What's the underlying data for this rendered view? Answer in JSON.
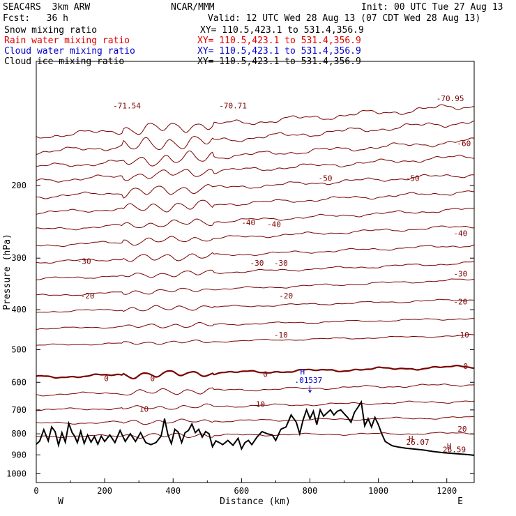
{
  "header": {
    "model": "SEAC4RS  3km ARW",
    "org": "NCAR/MMM",
    "init": "Init: 00 UTC Tue 27 Aug 13",
    "fcst": "Fcst:   36 h",
    "valid": "Valid: 12 UTC Wed 28 Aug 13 (07 CDT Wed 28 Aug 13)"
  },
  "fields": [
    {
      "name": "Snow mixing ratio",
      "xy": "XY= 110.5,423.1 to 531.4,356.9",
      "color": "#000000"
    },
    {
      "name": "Rain water mixing ratio",
      "xy": "XY= 110.5,423.1 to 531.4,356.9",
      "color": "#e00000"
    },
    {
      "name": "Cloud water mixing ratio",
      "xy": "XY= 110.5,423.1 to 531.4,356.9",
      "color": "#0000cc"
    },
    {
      "name": "Cloud ice mixing ratio",
      "xy": "XY= 110.5,423.1 to 531.4,356.9",
      "color": "#000000"
    }
  ],
  "chart_data": {
    "type": "line",
    "xlabel": "Distance (km)",
    "ylabel": "Pressure (hPa)",
    "xlim": [
      0,
      1280
    ],
    "ylim": [
      1050,
      100
    ],
    "yscale": "log",
    "x_ticks": [
      0,
      200,
      400,
      600,
      800,
      1000,
      1200
    ],
    "y_ticks": [
      200,
      300,
      400,
      500,
      600,
      700,
      800,
      900,
      1000
    ],
    "x_end_labels": {
      "left": "W",
      "right": "E"
    },
    "contour_color": "#7a0000",
    "isotherm_levels": [
      -70,
      -60,
      -50,
      -40,
      -30,
      -20,
      -10,
      0,
      10,
      20
    ],
    "isotherms": [
      {
        "level": -70,
        "p_west": 152,
        "p_east": 128
      },
      {
        "level": -65,
        "p_west": 166,
        "p_east": 140
      },
      {
        "level": -60,
        "p_west": 180,
        "p_east": 156
      },
      {
        "level": -55,
        "p_west": 195,
        "p_east": 170
      },
      {
        "level": -50,
        "p_west": 213,
        "p_east": 188
      },
      {
        "level": -45,
        "p_west": 233,
        "p_east": 207
      },
      {
        "level": -40,
        "p_west": 256,
        "p_east": 228
      },
      {
        "level": -35,
        "p_west": 280,
        "p_east": 251
      },
      {
        "level": -30,
        "p_west": 307,
        "p_east": 279
      },
      {
        "level": -25,
        "p_west": 337,
        "p_east": 308
      },
      {
        "level": -20,
        "p_west": 370,
        "p_east": 338
      },
      {
        "level": -15,
        "p_west": 405,
        "p_east": 378
      },
      {
        "level": -10,
        "p_west": 445,
        "p_east": 420
      },
      {
        "level": -5,
        "p_west": 488,
        "p_east": 462
      },
      {
        "level": 0,
        "p_west": 583,
        "p_east": 550
      },
      {
        "level": 5,
        "p_west": 643,
        "p_east": 607
      },
      {
        "level": 10,
        "p_west": 700,
        "p_east": 667
      },
      {
        "level": 15,
        "p_west": 755,
        "p_east": 730
      },
      {
        "level": 20,
        "p_west": 812,
        "p_east": 797
      }
    ],
    "labels": [
      {
        "text": "-71.54",
        "x": 265,
        "p": 128
      },
      {
        "text": "-70.71",
        "x": 575,
        "p": 128
      },
      {
        "text": "-70.95",
        "x": 1210,
        "p": 123
      },
      {
        "text": "-60",
        "x": 1250,
        "p": 158
      },
      {
        "text": "-50",
        "x": 845,
        "p": 192
      },
      {
        "text": "-50",
        "x": 1100,
        "p": 192
      },
      {
        "text": "-40",
        "x": 620,
        "p": 246
      },
      {
        "text": "-40",
        "x": 695,
        "p": 248
      },
      {
        "text": "-40",
        "x": 1240,
        "p": 261
      },
      {
        "text": "-30",
        "x": 140,
        "p": 305
      },
      {
        "text": "-30",
        "x": 645,
        "p": 308
      },
      {
        "text": "-30",
        "x": 715,
        "p": 308
      },
      {
        "text": "-30",
        "x": 1240,
        "p": 327
      },
      {
        "text": "-20",
        "x": 150,
        "p": 370
      },
      {
        "text": "-20",
        "x": 730,
        "p": 370
      },
      {
        "text": "-20",
        "x": 1240,
        "p": 382
      },
      {
        "text": "-10",
        "x": 715,
        "p": 460
      },
      {
        "text": "-10",
        "x": 1245,
        "p": 460
      },
      {
        "text": "0",
        "x": 205,
        "p": 587
      },
      {
        "text": "0",
        "x": 340,
        "p": 587
      },
      {
        "text": "0",
        "x": 670,
        "p": 573
      },
      {
        "text": "0",
        "x": 1255,
        "p": 548
      },
      {
        "text": "10",
        "x": 315,
        "p": 696
      },
      {
        "text": "10",
        "x": 655,
        "p": 678
      },
      {
        "text": "20",
        "x": 1245,
        "p": 778
      },
      {
        "text": "26.07",
        "x": 1115,
        "p": 838
      },
      {
        "text": "26.59",
        "x": 1222,
        "p": 873
      }
    ],
    "highs": [
      {
        "text": "H",
        "x": 1095,
        "p": 822,
        "color": "#7a0000"
      },
      {
        "text": "H",
        "x": 1207,
        "p": 856,
        "color": "#7a0000"
      }
    ],
    "cloud_water": {
      "label": "H",
      "value": ".01537",
      "x": 800,
      "p": 588,
      "color": "#0000cc"
    },
    "terrain": {
      "x": [
        0,
        10,
        22,
        35,
        45,
        55,
        65,
        75,
        85,
        95,
        105,
        112,
        120,
        130,
        140,
        150,
        160,
        170,
        180,
        190,
        200,
        215,
        230,
        245,
        260,
        275,
        290,
        305,
        320,
        335,
        350,
        365,
        375,
        385,
        395,
        405,
        415,
        425,
        435,
        445,
        455,
        465,
        475,
        485,
        495,
        505,
        515,
        525,
        535,
        545,
        560,
        575,
        590,
        600,
        610,
        620,
        630,
        645,
        660,
        675,
        690,
        700,
        715,
        730,
        745,
        760,
        770,
        780,
        790,
        800,
        810,
        820,
        830,
        840,
        850,
        860,
        870,
        880,
        890,
        900,
        910,
        920,
        930,
        940,
        950,
        960,
        970,
        980,
        990,
        1000,
        1010,
        1020,
        1040,
        1060,
        1080,
        1100,
        1130,
        1160,
        1190,
        1220,
        1250,
        1270,
        1280
      ],
      "p": [
        848,
        833,
        782,
        832,
        770,
        790,
        852,
        795,
        838,
        755,
        795,
        810,
        840,
        788,
        844,
        805,
        838,
        812,
        848,
        810,
        835,
        805,
        840,
        785,
        835,
        800,
        835,
        795,
        840,
        850,
        840,
        810,
        735,
        805,
        845,
        780,
        792,
        840,
        795,
        785,
        757,
        795,
        780,
        815,
        790,
        800,
        860,
        832,
        840,
        850,
        830,
        853,
        820,
        870,
        840,
        830,
        850,
        815,
        790,
        800,
        805,
        830,
        780,
        770,
        720,
        750,
        800,
        740,
        700,
        735,
        705,
        760,
        700,
        725,
        712,
        700,
        720,
        705,
        700,
        715,
        730,
        750,
        710,
        690,
        670,
        765,
        735,
        770,
        730,
        760,
        800,
        835,
        855,
        862,
        867,
        870,
        875,
        883,
        889,
        893,
        897,
        900,
        902
      ]
    }
  }
}
